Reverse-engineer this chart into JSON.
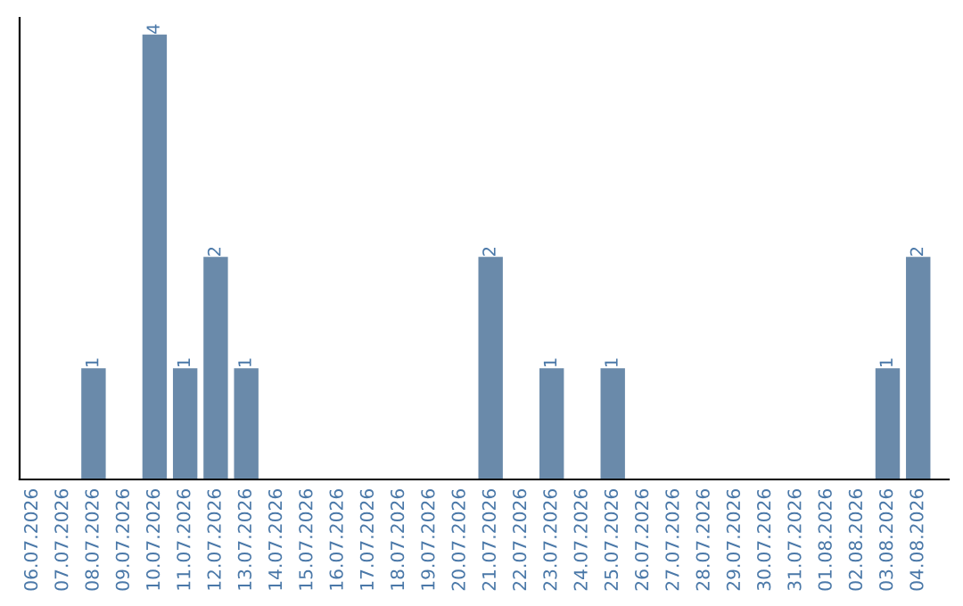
{
  "chart_data": {
    "type": "bar",
    "categories": [
      "06.07.2026",
      "07.07.2026",
      "08.07.2026",
      "09.07.2026",
      "10.07.2026",
      "11.07.2026",
      "12.07.2026",
      "13.07.2026",
      "14.07.2026",
      "15.07.2026",
      "16.07.2026",
      "17.07.2026",
      "18.07.2026",
      "19.07.2026",
      "20.07.2026",
      "21.07.2026",
      "22.07.2026",
      "23.07.2026",
      "24.07.2026",
      "25.07.2026",
      "26.07.2026",
      "27.07.2026",
      "28.07.2026",
      "29.07.2026",
      "30.07.2026",
      "31.07.2026",
      "01.08.2026",
      "02.08.2026",
      "03.08.2026",
      "04.08.2026"
    ],
    "values": [
      0,
      0,
      1,
      0,
      4,
      1,
      2,
      1,
      0,
      0,
      0,
      0,
      0,
      0,
      0,
      2,
      0,
      1,
      0,
      1,
      0,
      0,
      0,
      0,
      0,
      0,
      0,
      0,
      1,
      2
    ],
    "value_labels": [
      null,
      null,
      "1",
      null,
      "4",
      "1",
      "2",
      "1",
      null,
      null,
      null,
      null,
      null,
      null,
      null,
      "2",
      null,
      "1",
      null,
      "1",
      null,
      null,
      null,
      null,
      null,
      null,
      null,
      null,
      "1",
      "2"
    ],
    "color": "#6a8aaa",
    "ylim": [
      0,
      4.15
    ],
    "tick_labels": "x",
    "grid": false,
    "legend": false
  }
}
